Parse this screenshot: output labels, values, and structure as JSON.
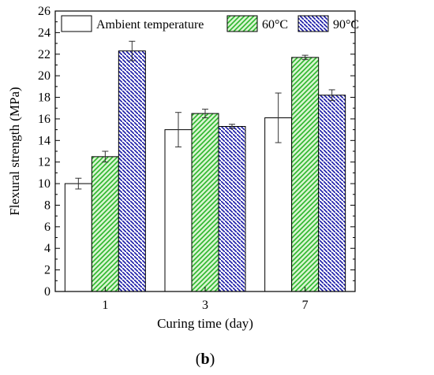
{
  "chart_data": {
    "type": "bar",
    "categories": [
      "1",
      "3",
      "7"
    ],
    "series": [
      {
        "name": "Ambient temperature",
        "values": [
          10.0,
          15.0,
          16.1
        ],
        "errors": [
          0.5,
          1.6,
          2.3
        ],
        "pattern": "none"
      },
      {
        "name": "60°C",
        "values": [
          12.5,
          16.5,
          21.7
        ],
        "errors": [
          0.5,
          0.4,
          0.2
        ],
        "pattern": "diagonal-hatch",
        "color": "#2bb52b",
        "fill": "#d8f5d0"
      },
      {
        "name": "90°C",
        "values": [
          22.3,
          15.3,
          18.2
        ],
        "errors": [
          0.9,
          0.2,
          0.5
        ],
        "pattern": "back-diagonal-hatch",
        "color": "#1a1aa6",
        "fill": "#ffffff"
      }
    ],
    "xlabel": "Curing time (day)",
    "ylabel": "Flexural strength (MPa)",
    "ylim": [
      0,
      26
    ],
    "yticks": [
      "0",
      "2",
      "4",
      "6",
      "8",
      "10",
      "12",
      "14",
      "16",
      "18",
      "20",
      "22",
      "24",
      "26"
    ],
    "legend_position": "top",
    "grid": false
  },
  "caption": "(b)"
}
